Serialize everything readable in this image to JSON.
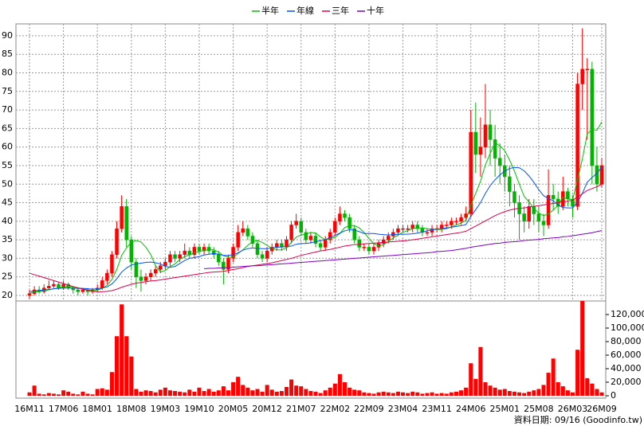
{
  "chart_data": {
    "type": "candlestick",
    "footer": "資料日期: 09/16 (Goodinfo.tw)",
    "grid": true,
    "legend": "top",
    "categories": [
      "16M11",
      null,
      null,
      null,
      null,
      null,
      null,
      "17M06",
      null,
      null,
      null,
      null,
      null,
      null,
      "18M01",
      null,
      null,
      null,
      null,
      null,
      null,
      "18M08",
      null,
      null,
      null,
      null,
      null,
      null,
      "19M03",
      null,
      null,
      null,
      null,
      null,
      null,
      "19M10",
      null,
      null,
      null,
      null,
      null,
      null,
      "20M05",
      null,
      null,
      null,
      null,
      null,
      null,
      "20M12",
      null,
      null,
      null,
      null,
      null,
      null,
      "21M07",
      null,
      null,
      null,
      null,
      null,
      null,
      "22M02",
      null,
      null,
      null,
      null,
      null,
      null,
      "22M09",
      null,
      null,
      null,
      null,
      null,
      null,
      "23M04",
      null,
      null,
      null,
      null,
      null,
      null,
      "23M11",
      null,
      null,
      null,
      null,
      null,
      null,
      "24M06",
      null,
      null,
      null,
      null,
      null,
      null,
      "25M01",
      null,
      null,
      null,
      null,
      null,
      null,
      "25M08",
      null,
      null,
      null,
      null,
      null,
      null,
      "26M03",
      null,
      null,
      null,
      null,
      null,
      "26M09"
    ],
    "ylim": [
      18.5,
      93.2
    ],
    "yticks": [
      20,
      25,
      30,
      35,
      40,
      45,
      50,
      55,
      60,
      65,
      70,
      75,
      80,
      85,
      90
    ],
    "candles": {
      "up_color": "#ff0000",
      "down_color": "#00b400",
      "open": [
        20,
        20.5,
        21.5,
        21,
        22,
        22.5,
        23,
        22,
        23,
        22,
        21.5,
        21,
        21.5,
        21,
        21.5,
        22,
        24,
        26,
        31,
        38,
        44,
        35,
        29,
        25,
        24,
        25,
        26,
        27,
        28,
        29,
        31,
        30,
        31,
        32,
        31,
        33,
        32,
        33,
        32,
        31,
        29,
        27,
        30,
        33,
        37,
        38,
        36,
        34,
        31,
        30,
        32,
        33,
        34,
        33,
        35,
        39,
        40,
        37,
        35,
        36,
        34,
        33,
        35,
        37,
        40,
        42,
        41,
        38,
        35,
        33,
        33,
        32,
        33,
        34,
        35,
        36,
        37,
        38,
        38,
        38,
        39,
        38,
        37,
        37,
        38,
        38,
        39,
        39,
        40,
        40,
        41,
        42,
        64,
        58,
        60,
        66,
        62,
        57,
        55,
        52,
        48,
        45,
        42,
        40,
        44,
        42,
        40,
        39,
        47,
        46,
        44,
        48,
        46,
        44,
        77,
        81,
        81,
        55,
        50
      ],
      "high": [
        21.5,
        22.5,
        22.5,
        23,
        24,
        24,
        23.5,
        24,
        23.5,
        22.5,
        22,
        22,
        22,
        22,
        23,
        25,
        27,
        32,
        40,
        47,
        46,
        36,
        30,
        27,
        26,
        27,
        28,
        29,
        30,
        32,
        32,
        32,
        34,
        33,
        34,
        34,
        34,
        34,
        33,
        32,
        30,
        31,
        34,
        39,
        40,
        39,
        37,
        35,
        32,
        33,
        34,
        35,
        35,
        36,
        40,
        42,
        41,
        38,
        37,
        37,
        35,
        36,
        38,
        41,
        44,
        43,
        42,
        39,
        36,
        34,
        34,
        34,
        35,
        36,
        37,
        38,
        39,
        39,
        39,
        40,
        40,
        39,
        38,
        39,
        39,
        40,
        40,
        41,
        41,
        42,
        44,
        70,
        72,
        68,
        77,
        70,
        66,
        61,
        58,
        55,
        50,
        47,
        44,
        46,
        46,
        44,
        42,
        54,
        50,
        48,
        52,
        49,
        47,
        80,
        92,
        84,
        83,
        60,
        57
      ],
      "low": [
        19,
        20,
        20.5,
        20.5,
        21.5,
        22,
        21.5,
        21.5,
        21.5,
        20.5,
        20,
        20.5,
        20,
        20.5,
        21,
        21.5,
        23,
        25,
        30,
        37,
        33,
        27,
        22,
        21,
        23,
        24,
        25,
        26,
        27,
        28,
        29,
        29,
        30,
        30,
        30,
        31,
        31,
        31,
        30,
        28,
        23,
        26,
        29,
        32,
        36,
        35,
        33,
        30,
        29,
        29,
        31,
        32,
        32,
        32,
        34,
        38,
        36,
        34,
        34,
        33,
        32,
        32,
        34,
        36,
        39,
        40,
        37,
        34,
        32,
        32,
        31,
        31,
        32,
        33,
        34,
        35,
        36,
        37,
        37,
        37,
        37,
        36,
        36,
        36,
        37,
        37,
        38,
        38,
        39,
        39,
        40,
        41,
        53,
        52,
        57,
        55,
        52,
        50,
        48,
        44,
        41,
        35,
        37,
        38,
        39,
        37,
        36,
        38,
        43,
        42,
        43,
        44,
        41,
        43,
        70,
        62,
        50,
        48,
        49
      ],
      "close": [
        20.5,
        21.5,
        21,
        22,
        22.5,
        23,
        22,
        23,
        22,
        21.5,
        21,
        21.5,
        21,
        21.5,
        22,
        24,
        26,
        31,
        38,
        44,
        35,
        29,
        25,
        24,
        25,
        26,
        27,
        28,
        29,
        31,
        30,
        31,
        32,
        31,
        33,
        32,
        33,
        32,
        31,
        29,
        27,
        30,
        33,
        37,
        38,
        36,
        34,
        31,
        30,
        32,
        33,
        34,
        33,
        35,
        39,
        40,
        37,
        35,
        36,
        34,
        33,
        35,
        37,
        40,
        42,
        41,
        38,
        35,
        33,
        33,
        32,
        33,
        34,
        35,
        36,
        37,
        38,
        38,
        38,
        39,
        38,
        37,
        37,
        38,
        38,
        39,
        39,
        40,
        40,
        41,
        42,
        64,
        58,
        60,
        66,
        62,
        57,
        55,
        52,
        48,
        45,
        42,
        40,
        44,
        42,
        40,
        39,
        47,
        46,
        44,
        48,
        46,
        44,
        77,
        81,
        81,
        55,
        50,
        55
      ]
    },
    "series": [
      {
        "name": "半年",
        "color": "#00c000",
        "values": [
          20.5,
          21,
          21,
          21.3,
          21.5,
          21.8,
          22,
          22.3,
          22.4,
          22.3,
          22.1,
          21.8,
          21.5,
          21.3,
          21.4,
          21.9,
          22.7,
          24.3,
          27,
          30.8,
          32.8,
          34.4,
          34.8,
          34.4,
          33,
          31,
          28,
          26.3,
          26.7,
          27.8,
          28.5,
          29.7,
          30.5,
          30.9,
          31.5,
          31.8,
          32.2,
          32.3,
          32.3,
          31.7,
          30.7,
          30.3,
          30.3,
          31.3,
          32.3,
          33.5,
          34.5,
          34.8,
          34.3,
          33.5,
          32.7,
          32.3,
          32.3,
          32.8,
          34.3,
          35.7,
          36.3,
          36.5,
          37,
          36.8,
          35.8,
          35,
          35.3,
          35.7,
          36.7,
          38.3,
          38.8,
          38.8,
          38.2,
          37,
          35.3,
          34,
          33.3,
          33.7,
          34.5,
          35.5,
          36.3,
          37,
          37.5,
          38,
          38.2,
          38.2,
          38,
          37.8,
          37.8,
          37.8,
          38,
          38.5,
          39,
          39.5,
          40.2,
          44.3,
          47.5,
          50.8,
          55.2,
          58.3,
          61.2,
          60.3,
          59,
          56.5,
          53.5,
          50,
          46.7,
          45.2,
          43.5,
          42.2,
          41.5,
          42,
          43,
          44.3,
          46.5,
          46,
          45.8,
          51.2,
          56.8,
          63.5,
          64.8,
          64.5,
          66.8
        ]
      },
      {
        "name": "年線",
        "color": "#0050ff",
        "values": [
          21,
          21.2,
          21.3,
          21.5,
          21.6,
          21.8,
          21.9,
          22,
          22,
          22,
          21.9,
          21.9,
          21.8,
          21.7,
          21.8,
          22,
          22.3,
          23.1,
          24.5,
          26.3,
          27.4,
          28.2,
          28.5,
          28.7,
          28.9,
          29,
          28.8,
          28.5,
          27.8,
          27.6,
          27.8,
          28.6,
          29.4,
          30,
          30.2,
          30.5,
          30.9,
          31.1,
          31.3,
          31.1,
          30.8,
          30.8,
          31,
          31.5,
          32.2,
          32.6,
          32.8,
          32.7,
          32.6,
          32.6,
          32.8,
          33,
          33.1,
          33.2,
          33.3,
          33.8,
          34,
          34,
          34.2,
          34.5,
          34.8,
          35,
          35.6,
          36.2,
          36.8,
          37.4,
          37.7,
          37.6,
          37.2,
          36.7,
          36.7,
          36.7,
          36.5,
          36.4,
          36.3,
          36.4,
          36.5,
          36.5,
          36.5,
          36.6,
          36.8,
          37.1,
          37.4,
          37.7,
          37.9,
          38,
          38.2,
          38.4,
          38.6,
          38.8,
          39.1,
          41.3,
          43.1,
          45,
          47.5,
          49.6,
          51.2,
          52.5,
          53.5,
          54.2,
          54.5,
          54.4,
          53.6,
          52.2,
          50.5,
          48.5,
          46.9,
          46.1,
          45.5,
          44.4,
          43.7,
          43.6,
          43.6,
          45.2,
          47.5,
          50.5,
          51.8,
          52.9,
          54.6
        ]
      },
      {
        "name": "三年",
        "color": "#e0004a",
        "values": [
          26,
          25.6,
          25.2,
          24.8,
          24.4,
          24,
          23.6,
          23.2,
          22.8,
          22.4,
          22,
          21.7,
          21.4,
          21.1,
          21,
          21,
          21.1,
          21.3,
          21.7,
          22.2,
          22.6,
          23,
          23.3,
          23.5,
          23.7,
          23.9,
          24,
          24.2,
          24.4,
          24.6,
          24.8,
          25,
          25.2,
          25.4,
          25.6,
          25.8,
          26,
          26.2,
          26.3,
          26.4,
          26.5,
          26.7,
          27,
          27.2,
          27.5,
          27.8,
          28,
          28.2,
          28.4,
          28.6,
          28.8,
          29.1,
          29.4,
          29.7,
          30,
          30.4,
          30.8,
          31.1,
          31.4,
          31.7,
          32,
          32.2,
          32.4,
          32.7,
          33,
          33.3,
          33.5,
          33.7,
          33.8,
          33.9,
          34,
          34.1,
          34.2,
          34.3,
          34.4,
          34.5,
          34.6,
          34.7,
          34.8,
          35,
          35.2,
          35.4,
          35.6,
          35.8,
          36,
          36.2,
          36.4,
          36.6,
          36.8,
          37,
          37.3,
          38,
          38.7,
          39.4,
          40.1,
          40.8,
          41.5,
          42.1,
          42.6,
          43,
          43.3,
          43.5,
          43.6,
          43.8,
          44,
          44.2,
          44.4,
          44.6,
          44.8,
          45,
          45.2,
          45.4,
          45.7,
          46.5,
          47.4,
          48.3,
          48.8,
          49.3,
          50
        ]
      },
      {
        "name": "十年",
        "color": "#8000c0",
        "values": [
          null,
          null,
          null,
          null,
          null,
          null,
          null,
          null,
          null,
          null,
          null,
          null,
          null,
          null,
          null,
          null,
          null,
          null,
          null,
          null,
          null,
          null,
          null,
          null,
          null,
          null,
          null,
          null,
          null,
          null,
          null,
          null,
          null,
          null,
          null,
          null,
          27.2,
          27.3,
          27.3,
          27.4,
          27.5,
          27.5,
          27.6,
          27.7,
          27.8,
          27.9,
          28,
          28,
          28.1,
          28.2,
          28.3,
          28.4,
          28.5,
          28.6,
          28.7,
          28.8,
          28.9,
          29,
          29.1,
          29.2,
          29.3,
          29.4,
          29.5,
          29.6,
          29.7,
          29.8,
          29.9,
          30,
          30.1,
          30.2,
          30.3,
          30.4,
          30.5,
          30.6,
          30.7,
          30.8,
          30.9,
          31,
          31.1,
          31.2,
          31.3,
          31.4,
          31.5,
          31.6,
          31.8,
          31.9,
          32,
          32.1,
          32.3,
          32.5,
          32.7,
          33,
          33.2,
          33.4,
          33.6,
          33.8,
          34,
          34.1,
          34.3,
          34.4,
          34.5,
          34.6,
          34.8,
          34.9,
          35,
          35.1,
          35.3,
          35.4,
          35.5,
          35.6,
          35.8,
          35.9,
          36.1,
          36.3,
          36.5,
          36.7,
          36.9,
          37.2,
          37.5
        ]
      }
    ],
    "volume": {
      "color": "#ff0000",
      "ylim": [
        0,
        140000
      ],
      "yticks": [
        0,
        {
          "value": 20000,
          "label": "20,000"
        },
        {
          "value": 40000,
          "label": "40,000"
        },
        {
          "value": 60000,
          "label": "60,000"
        },
        {
          "value": 80000,
          "label": "80,000"
        },
        {
          "value": 100000,
          "label": "100,000"
        },
        {
          "value": 120000,
          "label": "120,000"
        }
      ],
      "values": [
        5000,
        15000,
        3000,
        2000,
        4000,
        3000,
        2000,
        8000,
        6000,
        3000,
        2000,
        6000,
        3000,
        2000,
        10000,
        11000,
        9000,
        35000,
        88000,
        135000,
        88000,
        58000,
        10000,
        6000,
        8000,
        7000,
        5000,
        9000,
        12000,
        8000,
        7000,
        6000,
        5000,
        9000,
        6000,
        12000,
        7000,
        10000,
        6000,
        8000,
        14000,
        8000,
        20000,
        28000,
        16000,
        12000,
        8000,
        10000,
        6000,
        16000,
        9000,
        6000,
        7000,
        13000,
        24000,
        15000,
        14000,
        10000,
        7000,
        6000,
        4000,
        8000,
        12000,
        18000,
        32000,
        20000,
        12000,
        9000,
        8000,
        5000,
        4000,
        3000,
        5000,
        6000,
        5000,
        4000,
        6000,
        5000,
        4000,
        6000,
        5000,
        3000,
        4000,
        5000,
        3000,
        4000,
        3000,
        5000,
        6000,
        8000,
        12000,
        48000,
        25000,
        72000,
        20000,
        15000,
        12000,
        9000,
        10000,
        7000,
        6000,
        5000,
        4000,
        6000,
        8000,
        10000,
        16000,
        34000,
        55000,
        20000,
        14000,
        8000,
        5000,
        68000,
        140000,
        26000,
        18000,
        10000,
        5000
      ]
    }
  }
}
